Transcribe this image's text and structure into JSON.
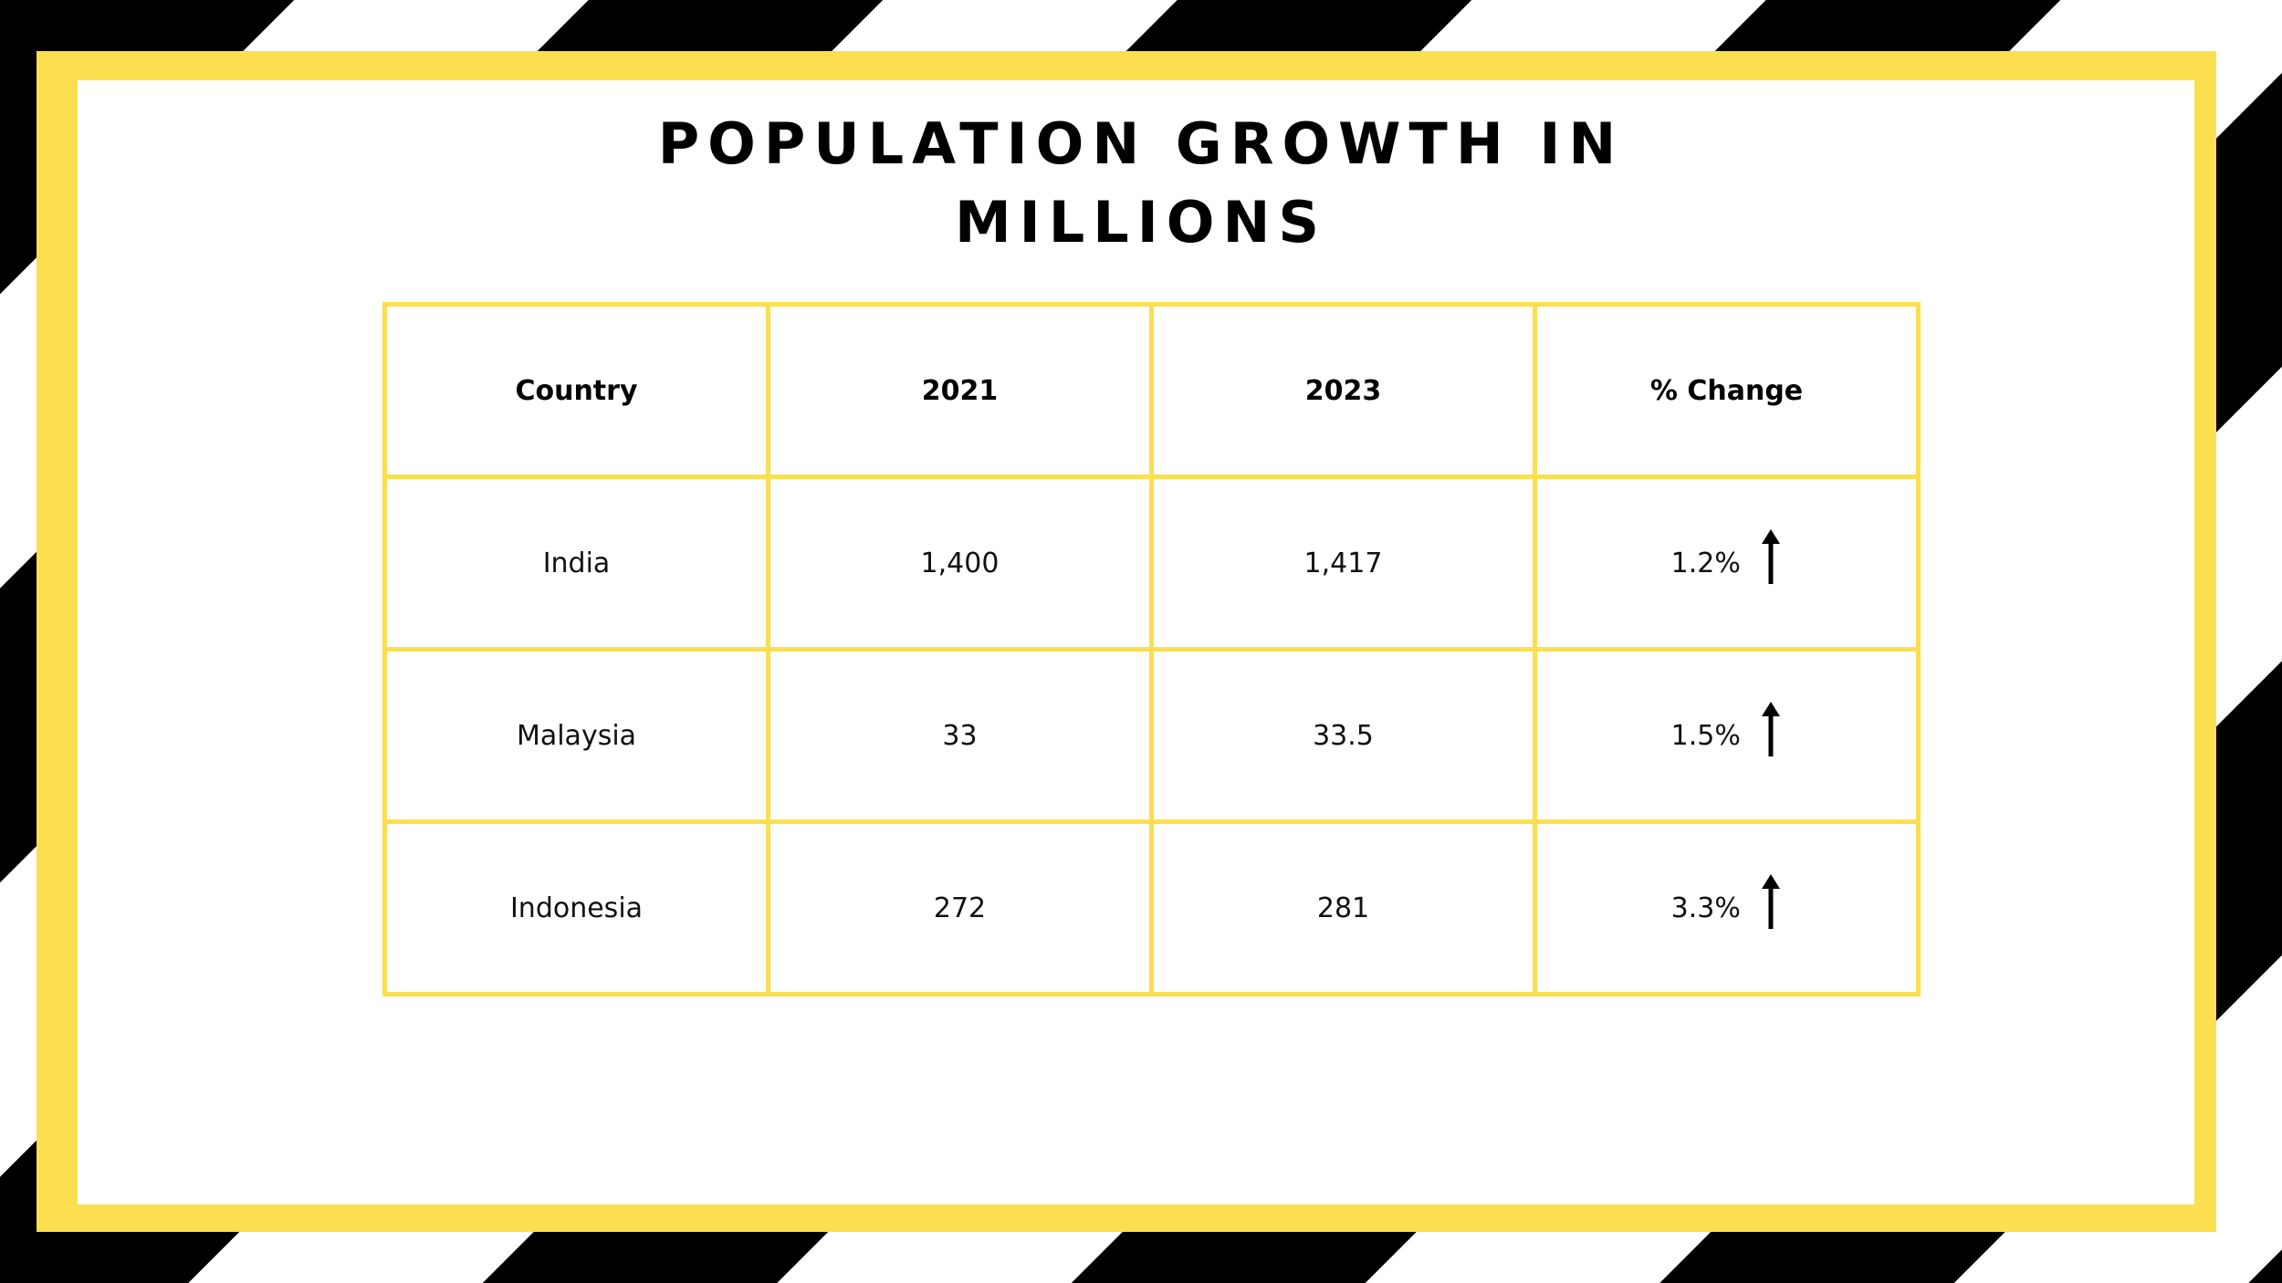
{
  "title_lines": [
    "POPULATION GROWTH IN",
    "MILLIONS"
  ],
  "table": {
    "headers": [
      "Country",
      "2021",
      "2023",
      "% Change"
    ],
    "rows": [
      {
        "country": "India",
        "y2021": "1,400",
        "y2023": "1,417",
        "change": "1.2%",
        "trend_icon": "arrow-up-icon"
      },
      {
        "country": "Malaysia",
        "y2021": "33",
        "y2023": "33.5",
        "change": "1.5%",
        "trend_icon": "arrow-up-icon"
      },
      {
        "country": "Indonesia",
        "y2021": "272",
        "y2023": "281",
        "change": "3.3%",
        "trend_icon": "arrow-up-icon"
      }
    ]
  },
  "colors": {
    "frame": "#fbdf4e",
    "stripes": "#000000",
    "background": "#ffffff"
  }
}
